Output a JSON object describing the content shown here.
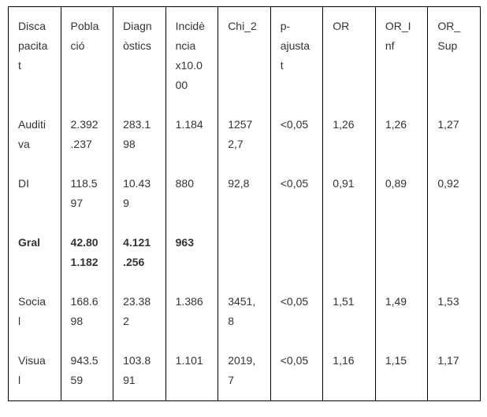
{
  "table": {
    "name": "discapacitat-incidencia-table",
    "columns": [
      {
        "key": "discapacitat",
        "label": "Discapacitat"
      },
      {
        "key": "poblacio",
        "label": "Població"
      },
      {
        "key": "diagnostics",
        "label": "Diagnòstics"
      },
      {
        "key": "incidencia",
        "label": "Incidència x10.000"
      },
      {
        "key": "chi_2",
        "label": "Chi_2"
      },
      {
        "key": "p_ajustat",
        "label": "p-ajustat"
      },
      {
        "key": "or",
        "label": "OR"
      },
      {
        "key": "or_inf",
        "label": "OR_Inf"
      },
      {
        "key": "or_sup",
        "label": "OR_Sup"
      }
    ],
    "rows": [
      {
        "id": "auditiva",
        "bold": false,
        "cells": [
          "Auditiva",
          "2.392.237",
          "283.198",
          "1.184",
          "12572,7",
          "<0,05",
          "1,26",
          "1,26",
          "1,27"
        ]
      },
      {
        "id": "di",
        "bold": false,
        "cells": [
          "DI",
          "118.597",
          "10.439",
          "880",
          "92,8",
          "<0,05",
          "0,91",
          "0,89",
          "0,92"
        ]
      },
      {
        "id": "gral",
        "bold": true,
        "cells": [
          "Gral",
          "42.801.182",
          "4.121.256",
          "963",
          "",
          "",
          "",
          "",
          ""
        ]
      },
      {
        "id": "social",
        "bold": false,
        "cells": [
          "Social",
          "168.698",
          "23.382",
          "1.386",
          "3451,8",
          "<0,05",
          "1,51",
          "1,49",
          "1,53"
        ]
      },
      {
        "id": "visual",
        "bold": false,
        "cells": [
          "Visual",
          "943.559",
          "103.891",
          "1.101",
          "2019,7",
          "<0,05",
          "1,16",
          "1,15",
          "1,17"
        ]
      }
    ],
    "colors": {
      "border": "#000000",
      "text": "#333333",
      "background": "#ffffff"
    }
  }
}
